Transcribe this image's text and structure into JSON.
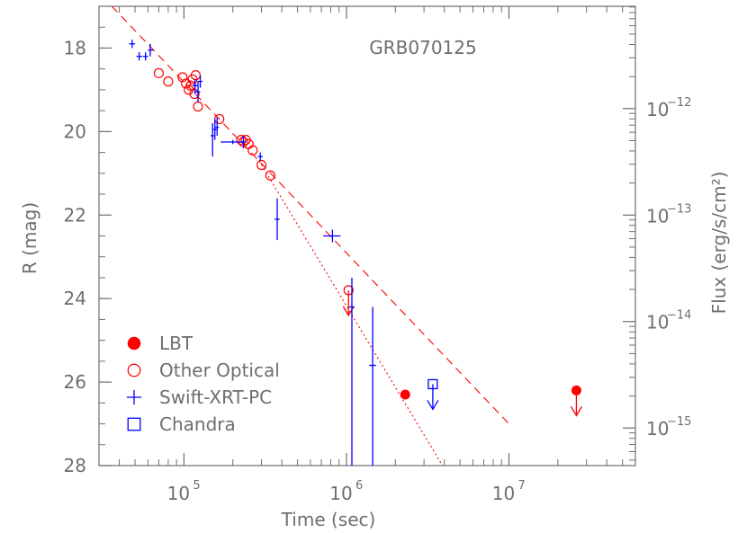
{
  "chart_data": {
    "type": "scatter",
    "title": "GRB070125",
    "xlabel": "Time (sec)",
    "ylabel": "R (mag)",
    "y2label": "Flux (erg/s/cm²)",
    "xscale": "log",
    "xlim": [
      30000,
      60000000
    ],
    "ylim": [
      28,
      17
    ],
    "y2scale": "log",
    "y2ticks": [
      {
        "value": 1e-12,
        "label": "10",
        "exp": "−12"
      },
      {
        "value": 1e-13,
        "label": "10",
        "exp": "−13"
      },
      {
        "value": 1e-14,
        "label": "10",
        "exp": "−14"
      },
      {
        "value": 1e-15,
        "label": "10",
        "exp": "−15"
      }
    ],
    "y2_mag_per_decade": 2.55,
    "y2_ref": {
      "mag": 19.45,
      "flux": 1e-12
    },
    "xticks": [
      {
        "value": 100000,
        "label": "10",
        "exp": "5"
      },
      {
        "value": 1000000,
        "label": "10",
        "exp": "6"
      },
      {
        "value": 10000000,
        "label": "10",
        "exp": "7"
      }
    ],
    "yticks": [
      18,
      20,
      22,
      24,
      26,
      28
    ],
    "legend": {
      "position": "bottom-left",
      "entries": [
        {
          "label": "LBT",
          "marker": "filled-circle",
          "color": "#ff0000"
        },
        {
          "label": "Other Optical",
          "marker": "open-circle",
          "color": "#ff0000"
        },
        {
          "label": "Swift-XRT-PC",
          "marker": "cross",
          "color": "#0000ff"
        },
        {
          "label": "Chandra",
          "marker": "open-square",
          "color": "#0000ff"
        }
      ]
    },
    "series": [
      {
        "name": "LBT",
        "marker": "filled-circle",
        "color": "#ff0000",
        "points": [
          {
            "x": 2300000,
            "y": 26.3
          },
          {
            "x": 26000000,
            "y": 26.2,
            "upper_limit": true
          }
        ]
      },
      {
        "name": "Other Optical",
        "marker": "open-circle",
        "color": "#ff0000",
        "points": [
          {
            "x": 70000,
            "y": 18.6
          },
          {
            "x": 80000,
            "y": 18.8
          },
          {
            "x": 98000,
            "y": 18.7
          },
          {
            "x": 103000,
            "y": 18.85
          },
          {
            "x": 107000,
            "y": 19.0
          },
          {
            "x": 110000,
            "y": 18.9
          },
          {
            "x": 113000,
            "y": 18.75
          },
          {
            "x": 116000,
            "y": 19.1
          },
          {
            "x": 118000,
            "y": 18.65
          },
          {
            "x": 122000,
            "y": 19.4
          },
          {
            "x": 165000,
            "y": 19.7
          },
          {
            "x": 225000,
            "y": 20.2
          },
          {
            "x": 232000,
            "y": 20.25
          },
          {
            "x": 240000,
            "y": 20.2
          },
          {
            "x": 250000,
            "y": 20.3
          },
          {
            "x": 265000,
            "y": 20.45
          },
          {
            "x": 300000,
            "y": 20.8
          },
          {
            "x": 340000,
            "y": 21.05
          },
          {
            "x": 1030000,
            "y": 23.8,
            "upper_limit": true
          }
        ]
      },
      {
        "name": "Swift-XRT-PC",
        "marker": "cross",
        "color": "#0000ff",
        "points": [
          {
            "x": 48000,
            "y": 17.9,
            "xlo": 46000,
            "xhi": 50000,
            "ylo": 17.8,
            "yhi": 18.0
          },
          {
            "x": 53000,
            "y": 18.2,
            "xlo": 51000,
            "xhi": 55500,
            "ylo": 18.1,
            "yhi": 18.3
          },
          {
            "x": 58000,
            "y": 18.2,
            "xlo": 56000,
            "xhi": 60000,
            "ylo": 18.1,
            "yhi": 18.3
          },
          {
            "x": 62000,
            "y": 18.05,
            "xlo": 60000,
            "xhi": 64500,
            "ylo": 17.9,
            "yhi": 18.2
          },
          {
            "x": 117000,
            "y": 18.9,
            "xlo": 113000,
            "xhi": 121000,
            "ylo": 18.75,
            "yhi": 19.1
          },
          {
            "x": 122000,
            "y": 19.05,
            "xlo": 118000,
            "xhi": 126000,
            "ylo": 18.8,
            "yhi": 19.3
          },
          {
            "x": 126000,
            "y": 18.8,
            "xlo": 122000,
            "xhi": 130000,
            "ylo": 18.65,
            "yhi": 18.95
          },
          {
            "x": 150000,
            "y": 20.1,
            "xlo": 146000,
            "xhi": 154000,
            "ylo": 19.8,
            "yhi": 20.6
          },
          {
            "x": 155000,
            "y": 19.95,
            "xlo": 151000,
            "xhi": 159000,
            "ylo": 19.7,
            "yhi": 20.2
          },
          {
            "x": 160000,
            "y": 19.9,
            "xlo": 156000,
            "xhi": 164000,
            "ylo": 19.65,
            "yhi": 20.1
          },
          {
            "x": 200000,
            "y": 20.25,
            "xlo": 168000,
            "xhi": 232000,
            "ylo": 20.2,
            "yhi": 20.3
          },
          {
            "x": 232000,
            "y": 20.25,
            "xlo": 222000,
            "xhi": 242000,
            "ylo": 20.1,
            "yhi": 20.4
          },
          {
            "x": 295000,
            "y": 20.6,
            "xlo": 285000,
            "xhi": 305000,
            "ylo": 20.5,
            "yhi": 20.7
          },
          {
            "x": 375000,
            "y": 22.1,
            "xlo": 362000,
            "xhi": 388000,
            "ylo": 21.6,
            "yhi": 22.6
          },
          {
            "x": 820000,
            "y": 22.5,
            "xlo": 720000,
            "xhi": 920000,
            "ylo": 22.35,
            "yhi": 22.65
          },
          {
            "x": 1080000,
            "y": 24.2,
            "xlo": 1040000,
            "xhi": 1120000,
            "ylo": 23.5,
            "yhi": 28.0
          },
          {
            "x": 1450000,
            "y": 25.6,
            "xlo": 1380000,
            "xhi": 1520000,
            "ylo": 24.2,
            "yhi": 28.0
          }
        ]
      },
      {
        "name": "Chandra",
        "marker": "open-square",
        "color": "#0000ff",
        "points": [
          {
            "x": 3400000,
            "y": 26.05,
            "upper_limit": true
          }
        ]
      }
    ],
    "lines": [
      {
        "style": "dashed",
        "color": "#ff0000",
        "points": [
          [
            36000,
            17.0
          ],
          [
            10000000,
            27.0
          ]
        ]
      },
      {
        "style": "dotted",
        "color": "#ff0000",
        "points": [
          [
            290000,
            20.7
          ],
          [
            3900000,
            28.0
          ]
        ]
      }
    ]
  }
}
